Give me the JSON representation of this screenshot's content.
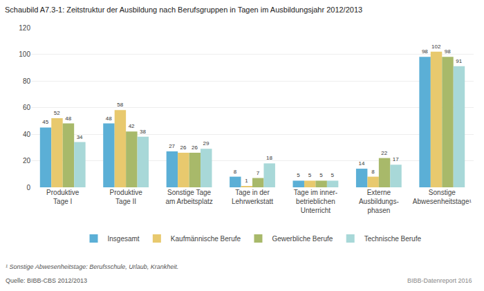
{
  "chart_data": {
    "type": "bar",
    "title": "Schaubild A7.3-1: Zeitstruktur der Ausbildung nach Berufsgruppen in Tagen im Ausbildungsjahr 2012/2013",
    "categories": [
      "Produktive\nTage I",
      "Produktive\nTage II",
      "Sonstige Tage\nam Arbeitsplatz",
      "Tage in der\nLehrwerkstatt",
      "Tage im inner-\nbetrieblichen\nUnterricht",
      "Externe\nAusbildungs-\nphasen",
      "Sonstige\nAbwesenheitstage¹"
    ],
    "series": [
      {
        "name": "Insgesamt",
        "color": "#5bafd6",
        "values": [
          45,
          48,
          27,
          8,
          5,
          14,
          98
        ]
      },
      {
        "name": "Kaufmännische Berufe",
        "color": "#e8c96e",
        "values": [
          52,
          58,
          26,
          1,
          5,
          8,
          102
        ]
      },
      {
        "name": "Gewerbliche Berufe",
        "color": "#a8b96a",
        "values": [
          48,
          42,
          26,
          7,
          5,
          22,
          98
        ]
      },
      {
        "name": "Technische Berufe",
        "color": "#a8d8d8",
        "values": [
          34,
          38,
          29,
          18,
          5,
          17,
          91
        ]
      }
    ],
    "ylim": [
      0,
      120
    ],
    "yticks": [
      0,
      20,
      40,
      60,
      80,
      100,
      120
    ],
    "grid": true,
    "legend": "bottom",
    "data_labels": true,
    "annotations": [
      "¹ Sonstige Abwesenheitstage: Berufsschule, Urlaub, Krankheit.",
      "Quelle: BIBB-CBS 2012/2013",
      "BIBB-Datenreport 2016"
    ]
  }
}
